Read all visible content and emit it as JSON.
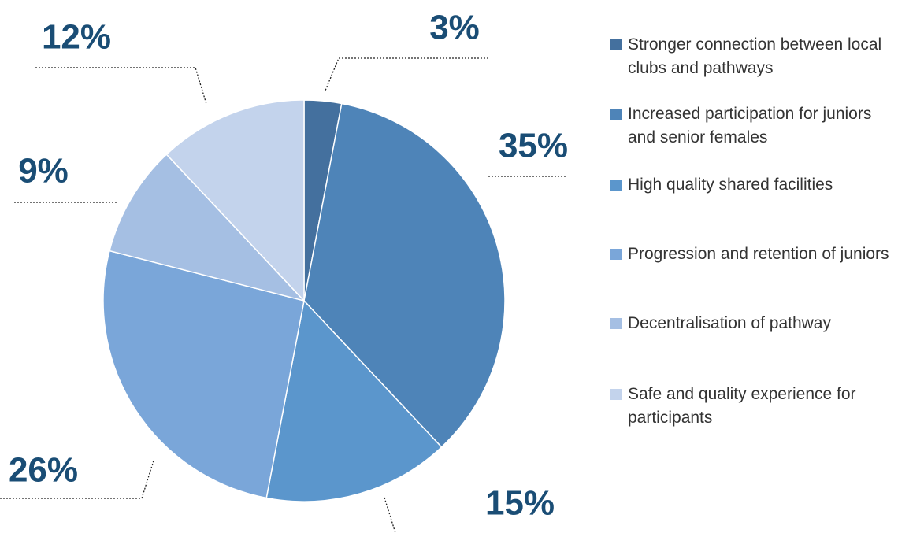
{
  "chart_data": {
    "type": "pie",
    "categories": [
      "Stronger connection between local clubs and pathways",
      "Increased participation for juniors and senior females",
      "High quality shared facilities",
      "Progression and retention of juniors",
      "Decentralisation of pathway",
      "Safe and quality experience for participants"
    ],
    "values": [
      3,
      35,
      15,
      26,
      9,
      12
    ],
    "value_labels": [
      "3%",
      "35%",
      "15%",
      "26%",
      "9%",
      "12%"
    ],
    "colors": [
      "#44709e",
      "#4e84b8",
      "#5b96cc",
      "#7aa6d9",
      "#a5bfe3",
      "#c3d3ec"
    ]
  }
}
